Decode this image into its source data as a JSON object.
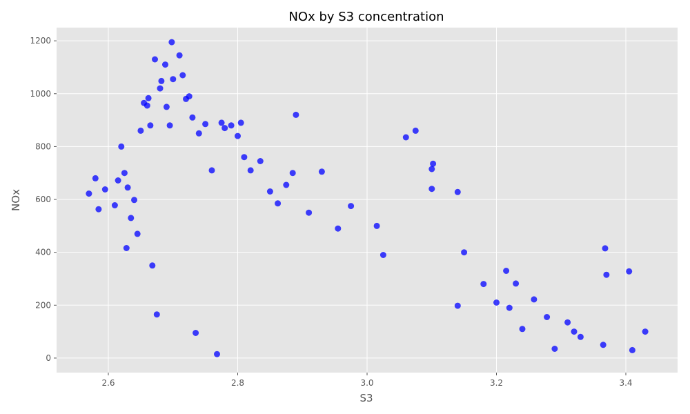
{
  "chart_data": {
    "type": "scatter",
    "title": "NOx by S3 concentration",
    "xlabel": "S3",
    "ylabel": "NOx",
    "xlim": [
      2.52,
      3.48
    ],
    "ylim": [
      -55,
      1250
    ],
    "xticks": [
      2.6,
      2.8,
      3.0,
      3.2,
      3.4
    ],
    "xtick_labels": [
      "2.6",
      "2.8",
      "3.0",
      "3.2",
      "3.4"
    ],
    "yticks": [
      0,
      200,
      400,
      600,
      800,
      1000,
      1200
    ],
    "ytick_labels": [
      "0",
      "200",
      "400",
      "600",
      "800",
      "1000",
      "1200"
    ],
    "grid": true,
    "style": "ggplot",
    "point_color": "#0000ff",
    "background_color": "#e5e5e5",
    "grid_color": "#ffffff",
    "series": [
      {
        "points": [
          [
            2.57,
            622
          ],
          [
            2.58,
            680
          ],
          [
            2.585,
            563
          ],
          [
            2.595,
            638
          ],
          [
            2.61,
            578
          ],
          [
            2.615,
            672
          ],
          [
            2.62,
            800
          ],
          [
            2.625,
            700
          ],
          [
            2.63,
            645
          ],
          [
            2.628,
            416
          ],
          [
            2.635,
            530
          ],
          [
            2.64,
            598
          ],
          [
            2.645,
            470
          ],
          [
            2.65,
            860
          ],
          [
            2.655,
            965
          ],
          [
            2.66,
            955
          ],
          [
            2.662,
            983
          ],
          [
            2.665,
            880
          ],
          [
            2.668,
            350
          ],
          [
            2.672,
            1130
          ],
          [
            2.675,
            165
          ],
          [
            2.68,
            1020
          ],
          [
            2.682,
            1048
          ],
          [
            2.688,
            1110
          ],
          [
            2.69,
            950
          ],
          [
            2.695,
            880
          ],
          [
            2.698,
            1195
          ],
          [
            2.7,
            1055
          ],
          [
            2.71,
            1145
          ],
          [
            2.715,
            1070
          ],
          [
            2.72,
            980
          ],
          [
            2.725,
            990
          ],
          [
            2.73,
            910
          ],
          [
            2.735,
            95
          ],
          [
            2.74,
            850
          ],
          [
            2.75,
            885
          ],
          [
            2.76,
            710
          ],
          [
            2.768,
            15
          ],
          [
            2.775,
            890
          ],
          [
            2.78,
            870
          ],
          [
            2.79,
            880
          ],
          [
            2.8,
            840
          ],
          [
            2.805,
            890
          ],
          [
            2.81,
            760
          ],
          [
            2.82,
            710
          ],
          [
            2.835,
            745
          ],
          [
            2.85,
            630
          ],
          [
            2.862,
            585
          ],
          [
            2.875,
            655
          ],
          [
            2.885,
            700
          ],
          [
            2.89,
            920
          ],
          [
            2.91,
            550
          ],
          [
            2.93,
            705
          ],
          [
            2.955,
            490
          ],
          [
            2.975,
            575
          ],
          [
            3.015,
            500
          ],
          [
            3.025,
            390
          ],
          [
            3.06,
            835
          ],
          [
            3.075,
            860
          ],
          [
            3.1,
            715
          ],
          [
            3.102,
            735
          ],
          [
            3.1,
            640
          ],
          [
            3.14,
            628
          ],
          [
            3.15,
            400
          ],
          [
            3.14,
            198
          ],
          [
            3.18,
            280
          ],
          [
            3.215,
            330
          ],
          [
            3.23,
            282
          ],
          [
            3.258,
            222
          ],
          [
            3.278,
            155
          ],
          [
            3.365,
            50
          ],
          [
            3.368,
            415
          ],
          [
            3.37,
            315
          ],
          [
            3.405,
            328
          ],
          [
            3.41,
            30
          ],
          [
            3.43,
            100
          ],
          [
            3.32,
            100
          ],
          [
            3.33,
            80
          ],
          [
            3.31,
            135
          ],
          [
            3.29,
            35
          ],
          [
            3.2,
            210
          ],
          [
            3.22,
            190
          ],
          [
            3.24,
            110
          ]
        ]
      }
    ]
  }
}
